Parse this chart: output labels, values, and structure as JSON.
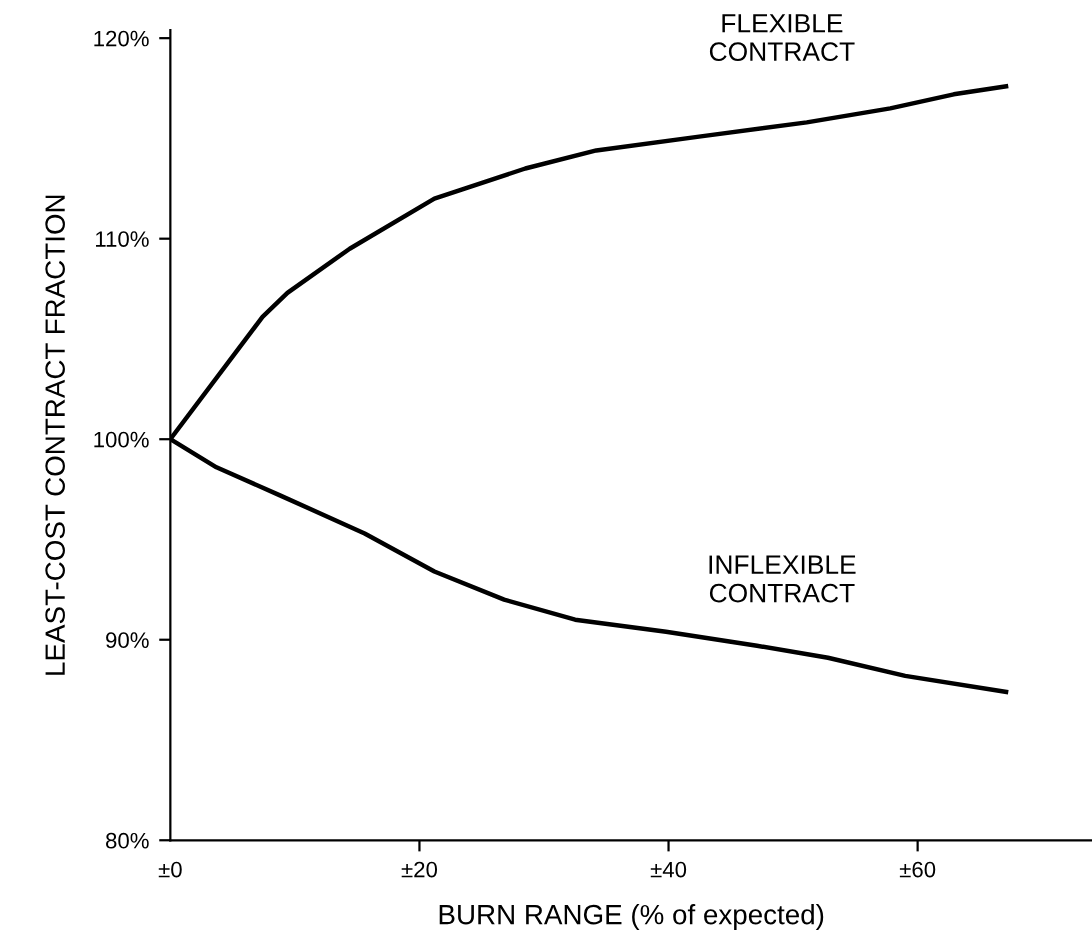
{
  "chart_data": {
    "type": "line",
    "xlabel": "BURN RANGE (% of expected)",
    "ylabel": "LEAST-COST CONTRACT FRACTION",
    "xlim": [
      0,
      74
    ],
    "ylim": [
      80,
      120.4
    ],
    "xticks": [
      {
        "value": 0,
        "label": "±0"
      },
      {
        "value": 20,
        "label": "±20"
      },
      {
        "value": 40,
        "label": "±40"
      },
      {
        "value": 60,
        "label": "±60"
      }
    ],
    "yticks": [
      {
        "value": 80,
        "label": "80%"
      },
      {
        "value": 90,
        "label": "90%"
      },
      {
        "value": 100,
        "label": "100%"
      },
      {
        "value": 110,
        "label": "110%"
      },
      {
        "value": 120,
        "label": "120%"
      }
    ],
    "grid": false,
    "legend": false,
    "series": [
      {
        "name": "FLEXIBLE\nCONTRACT",
        "color": "#000000",
        "x": [
          0,
          7.4,
          9.4,
          14.4,
          21.2,
          28.5,
          34.2,
          42.6,
          51.1,
          57.8,
          62.9,
          67.1
        ],
        "values": [
          100,
          106.1,
          107.3,
          109.5,
          112.0,
          113.5,
          114.4,
          115.1,
          115.8,
          116.5,
          117.2,
          117.6
        ]
      },
      {
        "name": "INFLEXIBLE\nCONTRACT",
        "color": "#000000",
        "x": [
          0,
          3.7,
          8.8,
          15.6,
          21.2,
          26.8,
          32.5,
          39.8,
          47.1,
          52.8,
          59.0,
          67.1
        ],
        "values": [
          100,
          98.6,
          97.2,
          95.3,
          93.4,
          92.0,
          91.0,
          90.4,
          89.7,
          89.1,
          88.2,
          87.4
        ]
      }
    ]
  }
}
